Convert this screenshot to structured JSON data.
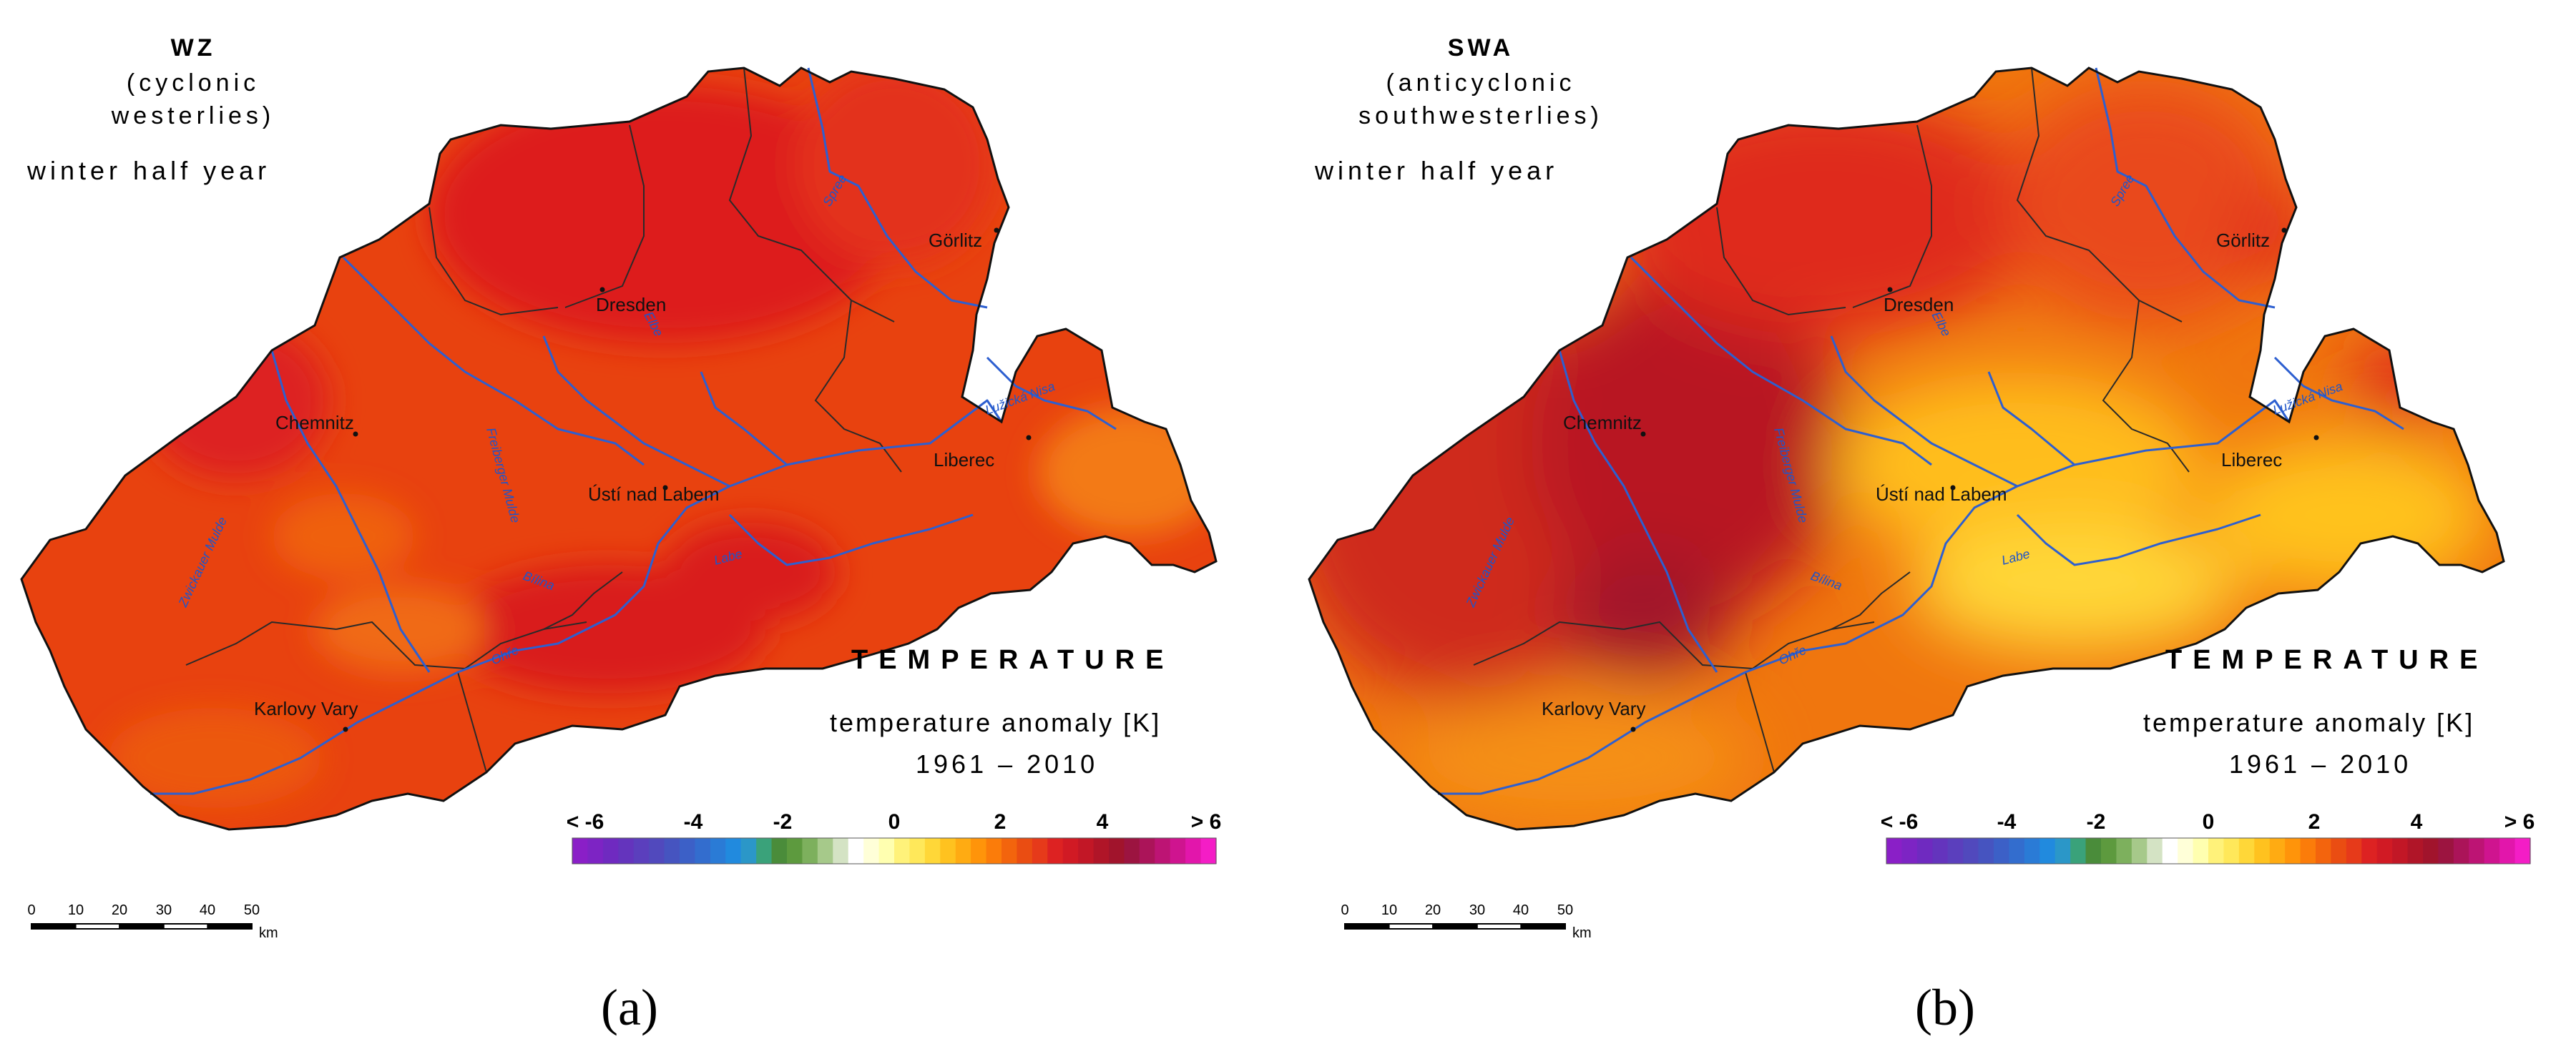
{
  "panels": [
    {
      "id": "a",
      "code": "WZ",
      "subtitle_line1": "(cyclonic",
      "subtitle_line2": "westerlies)",
      "season": "winter half year",
      "caption": "(a)"
    },
    {
      "id": "b",
      "code": "SWA",
      "subtitle_line1": "(anticyclonic",
      "subtitle_line2": "southwesterlies)",
      "season": "winter half year",
      "caption": "(b)"
    }
  ],
  "legend": {
    "variable": "TEMPERATURE",
    "quantity": "temperature anomaly [K]",
    "period": "1961 – 2010",
    "tick_labels": [
      "< -6",
      "-4",
      "-2",
      "0",
      "2",
      "4",
      "> 6"
    ],
    "tick_values": [
      -6,
      -4,
      -2,
      0,
      2,
      4,
      6
    ],
    "colors": [
      "#8a1fc7",
      "#7d24c4",
      "#6f2ac0",
      "#6434bd",
      "#5b3fbd",
      "#5149bd",
      "#4654c0",
      "#3c60c7",
      "#336dce",
      "#2a7bd6",
      "#218ade",
      "#2b97c8",
      "#3aa27a",
      "#4a8c3a",
      "#5d9a3e",
      "#7db05d",
      "#a6c98a",
      "#d4e3c4",
      "#ffffff",
      "#ffffd8",
      "#ffffb0",
      "#fff27a",
      "#ffe85a",
      "#ffd738",
      "#ffc21f",
      "#ffab12",
      "#ff940a",
      "#fb7c0a",
      "#f3640d",
      "#ea4d12",
      "#e63a1a",
      "#dd2222",
      "#d11a24",
      "#c21726",
      "#b01528",
      "#a1142c",
      "#9c1440",
      "#ab1459",
      "#bd1474",
      "#cf148f",
      "#e216ab",
      "#f41dc6"
    ]
  },
  "scalebar": {
    "ticks": [
      "0",
      "10",
      "20",
      "30",
      "40",
      "50"
    ],
    "unit": "km"
  },
  "places": {
    "cities": [
      "Dresden",
      "Chemnitz",
      "Görlitz",
      "Liberec",
      "Ústí nad Labem",
      "Karlovy Vary"
    ],
    "rivers": [
      "Labe",
      "Elbe",
      "Ohře",
      "Bílina",
      "Spree",
      "Lužická Nisa",
      "Zwickauer Mulde",
      "Freiberger Mulde"
    ]
  }
}
